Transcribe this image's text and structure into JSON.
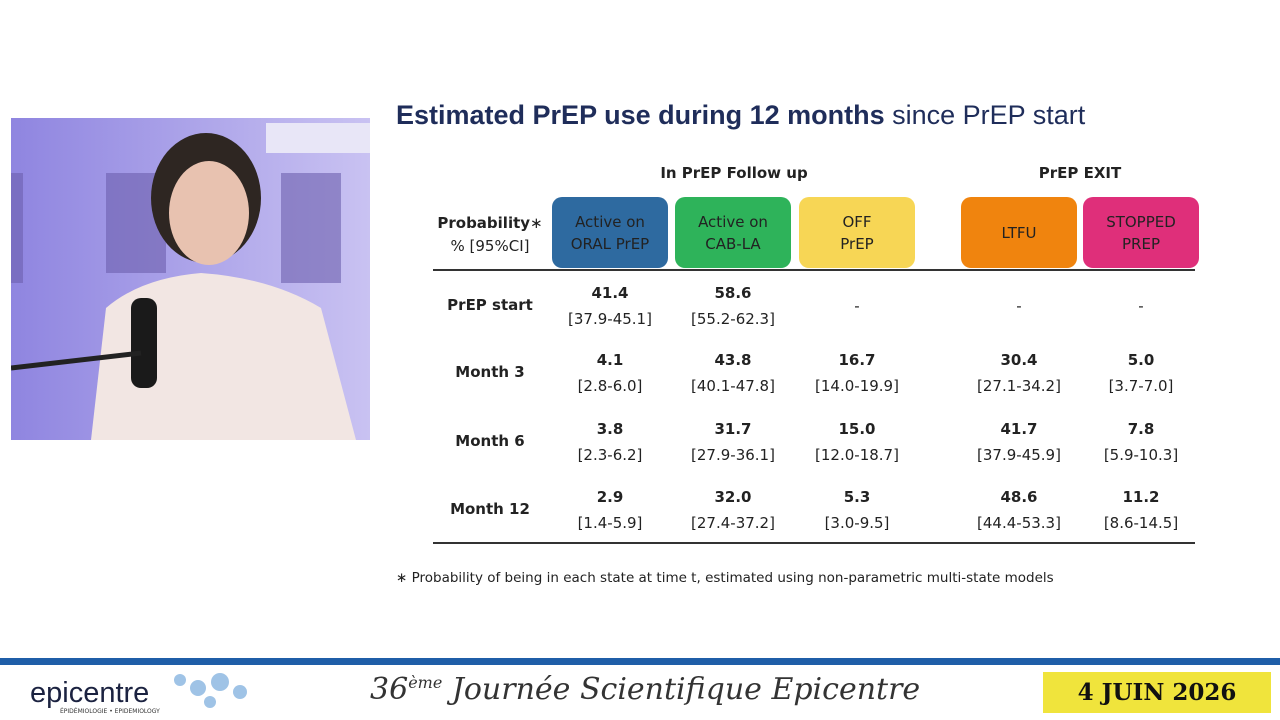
{
  "slide": {
    "title_bold": "Estimated PrEP use during 12 months",
    "title_rest": "since PrEP start",
    "groups": [
      "In PrEP Follow up",
      "PrEP EXIT"
    ],
    "header": {
      "label": "Probability",
      "asterisk": "∗",
      "sublabel": "% [95%CI]",
      "columns": [
        [
          "Active on",
          "ORAL PrEP"
        ],
        [
          "Active on",
          "CAB-LA"
        ],
        [
          "OFF",
          "PrEP"
        ],
        [
          "LTFU"
        ],
        [
          "STOPPED",
          "PREP"
        ]
      ]
    },
    "rows": [
      {
        "label": "PrEP start",
        "cells": [
          {
            "est": "41.4",
            "ci": "[37.9-45.1]"
          },
          {
            "est": "58.6",
            "ci": "[55.2-62.3]"
          },
          "-",
          "-",
          "-"
        ]
      },
      {
        "label": "Month 3",
        "cells": [
          {
            "est": "4.1",
            "ci": "[2.8-6.0]"
          },
          {
            "est": "43.8",
            "ci": "[40.1-47.8]"
          },
          {
            "est": "16.7",
            "ci": "[14.0-19.9]"
          },
          {
            "est": "30.4",
            "ci": "[27.1-34.2]"
          },
          {
            "est": "5.0",
            "ci": "[3.7-7.0]"
          }
        ]
      },
      {
        "label": "Month 6",
        "cells": [
          {
            "est": "3.8",
            "ci": "[2.3-6.2]"
          },
          {
            "est": "31.7",
            "ci": "[27.9-36.1]"
          },
          {
            "est": "15.0",
            "ci": "[12.0-18.7]"
          },
          {
            "est": "41.7",
            "ci": "[37.9-45.9]"
          },
          {
            "est": "7.8",
            "ci": "[5.9-10.3]"
          }
        ]
      },
      {
        "label": "Month 12",
        "cells": [
          {
            "est": "2.9",
            "ci": "[1.4-5.9]"
          },
          {
            "est": "32.0",
            "ci": "[27.4-37.2]"
          },
          {
            "est": "5.3",
            "ci": "[3.0-9.5]"
          },
          {
            "est": "48.6",
            "ci": "[44.4-53.3]"
          },
          {
            "est": "11.2",
            "ci": "[8.6-14.5]"
          }
        ]
      }
    ],
    "footnote": "∗ Probability of being in each state at time t, estimated using non-parametric multi-state models"
  },
  "footer": {
    "logo": "epicentre",
    "logo_sub": "ÉPIDÉMIOLOGIE • EPIDEMIOLOGY",
    "event_num": "36",
    "event_sup": "ème",
    "event_text": "Journée Scientifique Epicentre",
    "date": "4 JUIN 2026"
  }
}
